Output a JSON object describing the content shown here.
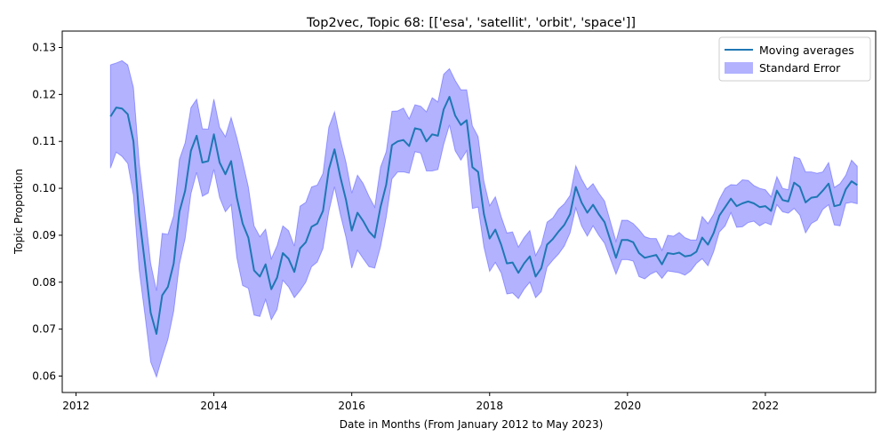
{
  "chart_data": {
    "type": "line",
    "title": "Top2vec, Topic 68: [['esa', 'satellit', 'orbit', 'space']]",
    "xlabel": "Date in Months (From January 2012 to May 2023)",
    "ylabel": "Topic Proportion",
    "xlim": [
      2011.8,
      2023.6
    ],
    "ylim": [
      0.0565,
      0.1335
    ],
    "x_ticks": [
      2012,
      2014,
      2016,
      2018,
      2020,
      2022
    ],
    "y_ticks": [
      0.06,
      0.07,
      0.08,
      0.09,
      0.1,
      0.11,
      0.12,
      0.13
    ],
    "y_tick_labels": [
      "0.06",
      "0.07",
      "0.08",
      "0.09",
      "0.10",
      "0.11",
      "0.12",
      "0.13"
    ],
    "legend": {
      "position": "top-right",
      "entries": [
        "Moving averages",
        "Standard Error"
      ]
    },
    "colors": {
      "line": "#1f77b4",
      "band": "#0000ff",
      "band_alpha": 0.3
    },
    "grid": false,
    "x": [
      2012.5,
      2012.583,
      2012.667,
      2012.75,
      2012.833,
      2012.917,
      2013.0,
      2013.083,
      2013.167,
      2013.25,
      2013.333,
      2013.417,
      2013.5,
      2013.583,
      2013.667,
      2013.75,
      2013.833,
      2013.917,
      2014.0,
      2014.083,
      2014.167,
      2014.25,
      2014.333,
      2014.417,
      2014.5,
      2014.583,
      2014.667,
      2014.75,
      2014.833,
      2014.917,
      2015.0,
      2015.083,
      2015.167,
      2015.25,
      2015.333,
      2015.417,
      2015.5,
      2015.583,
      2015.667,
      2015.75,
      2015.833,
      2015.917,
      2016.0,
      2016.083,
      2016.167,
      2016.25,
      2016.333,
      2016.417,
      2016.5,
      2016.583,
      2016.667,
      2016.75,
      2016.833,
      2016.917,
      2017.0,
      2017.083,
      2017.167,
      2017.25,
      2017.333,
      2017.417,
      2017.5,
      2017.583,
      2017.667,
      2017.75,
      2017.833,
      2017.917,
      2018.0,
      2018.083,
      2018.167,
      2018.25,
      2018.333,
      2018.417,
      2018.5,
      2018.583,
      2018.667,
      2018.75,
      2018.833,
      2018.917,
      2019.0,
      2019.083,
      2019.167,
      2019.25,
      2019.333,
      2019.417,
      2019.5,
      2019.583,
      2019.667,
      2019.75,
      2019.833,
      2019.917,
      2020.0,
      2020.083,
      2020.167,
      2020.25,
      2020.333,
      2020.417,
      2020.5,
      2020.583,
      2020.667,
      2020.75,
      2020.833,
      2020.917,
      2021.0,
      2021.083,
      2021.167,
      2021.25,
      2021.333,
      2021.417,
      2021.5,
      2021.583,
      2021.667,
      2021.75,
      2021.833,
      2021.917,
      2022.0,
      2022.083,
      2022.167,
      2022.25,
      2022.333,
      2022.417,
      2022.5,
      2022.583,
      2022.667,
      2022.75,
      2022.833,
      2022.917,
      2023.0,
      2023.083,
      2023.167,
      2023.25,
      2023.333
    ],
    "series": [
      {
        "name": "Moving averages",
        "values": [
          0.1153,
          0.1172,
          0.117,
          0.1158,
          0.11,
          0.094,
          0.084,
          0.0735,
          0.069,
          0.0772,
          0.079,
          0.084,
          0.095,
          0.0995,
          0.108,
          0.1112,
          0.1055,
          0.1058,
          0.1115,
          0.1055,
          0.103,
          0.1058,
          0.098,
          0.0925,
          0.0895,
          0.0825,
          0.0812,
          0.0838,
          0.0785,
          0.081,
          0.0862,
          0.085,
          0.0822,
          0.0872,
          0.0885,
          0.0918,
          0.0925,
          0.0952,
          0.104,
          0.1083,
          0.1025,
          0.0975,
          0.091,
          0.0948,
          0.093,
          0.0908,
          0.0895,
          0.096,
          0.1008,
          0.1092,
          0.11,
          0.1103,
          0.109,
          0.1128,
          0.1125,
          0.11,
          0.1115,
          0.1112,
          0.1168,
          0.1195,
          0.1155,
          0.1135,
          0.1145,
          0.1045,
          0.1035,
          0.0945,
          0.0893,
          0.0912,
          0.088,
          0.084,
          0.0842,
          0.082,
          0.084,
          0.0855,
          0.0812,
          0.083,
          0.088,
          0.0892,
          0.0908,
          0.0922,
          0.0945,
          0.1003,
          0.097,
          0.0948,
          0.0965,
          0.0945,
          0.0928,
          0.089,
          0.0852,
          0.089,
          0.089,
          0.0885,
          0.0862,
          0.0852,
          0.0855,
          0.0858,
          0.0838,
          0.0862,
          0.086,
          0.0863,
          0.0855,
          0.0857,
          0.0865,
          0.0895,
          0.088,
          0.0905,
          0.0942,
          0.096,
          0.0978,
          0.0962,
          0.0968,
          0.0972,
          0.0968,
          0.096,
          0.0962,
          0.0952,
          0.0995,
          0.0975,
          0.0972,
          0.1012,
          0.1003,
          0.097,
          0.098,
          0.0982,
          0.0995,
          0.101,
          0.0962,
          0.0965,
          0.0998,
          0.1015,
          0.1007
        ]
      }
    ],
    "standard_error": [
      0.011,
      0.0095,
      0.0102,
      0.0105,
      0.0115,
      0.0115,
      0.011,
      0.0105,
      0.0092,
      0.0132,
      0.0112,
      0.0102,
      0.0112,
      0.0102,
      0.0092,
      0.0078,
      0.0072,
      0.0068,
      0.0075,
      0.0075,
      0.008,
      0.0093,
      0.0128,
      0.0132,
      0.0108,
      0.0095,
      0.0085,
      0.0075,
      0.0065,
      0.0068,
      0.0058,
      0.006,
      0.0055,
      0.009,
      0.0085,
      0.0085,
      0.0082,
      0.008,
      0.009,
      0.008,
      0.008,
      0.008,
      0.008,
      0.008,
      0.008,
      0.0075,
      0.0065,
      0.0085,
      0.007,
      0.0072,
      0.0065,
      0.0068,
      0.0058,
      0.005,
      0.005,
      0.0063,
      0.0078,
      0.0072,
      0.0075,
      0.006,
      0.0075,
      0.0075,
      0.0065,
      0.0088,
      0.0075,
      0.007,
      0.007,
      0.007,
      0.006,
      0.0065,
      0.0065,
      0.0055,
      0.0055,
      0.0055,
      0.0045,
      0.005,
      0.0048,
      0.0045,
      0.0048,
      0.0045,
      0.004,
      0.0045,
      0.005,
      0.005,
      0.0045,
      0.0045,
      0.0045,
      0.004,
      0.0035,
      0.0042,
      0.0042,
      0.004,
      0.005,
      0.0045,
      0.0038,
      0.0035,
      0.003,
      0.0038,
      0.0038,
      0.0043,
      0.004,
      0.0033,
      0.0025,
      0.0045,
      0.0045,
      0.004,
      0.0035,
      0.004,
      0.003,
      0.0045,
      0.005,
      0.0045,
      0.0038,
      0.004,
      0.0035,
      0.003,
      0.003,
      0.0025,
      0.0025,
      0.0055,
      0.006,
      0.0065,
      0.0055,
      0.005,
      0.004,
      0.0045,
      0.004,
      0.0045,
      0.003,
      0.0045,
      0.004
    ]
  }
}
